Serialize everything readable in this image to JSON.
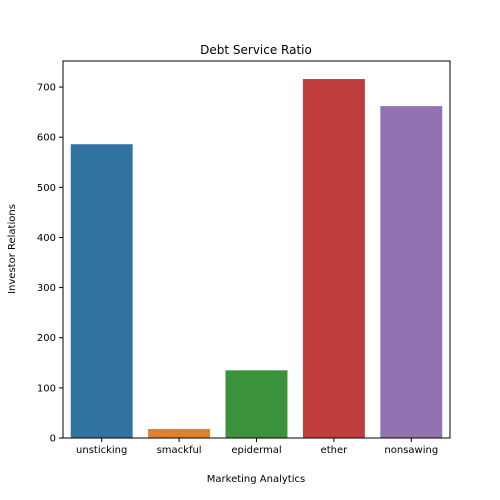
{
  "chart_data": {
    "type": "bar",
    "title": "Debt Service Ratio",
    "xlabel": "Marketing Analytics",
    "ylabel": "Investor Relations",
    "categories": [
      "unsticking",
      "smackful",
      "epidermal",
      "ether",
      "nonsawing"
    ],
    "values": [
      586,
      18,
      135,
      716,
      662
    ],
    "colors": [
      "#3274a1",
      "#e1812c",
      "#3a923a",
      "#c03d3e",
      "#9372b2"
    ],
    "ylim": [
      0,
      752
    ],
    "yticks": [
      0,
      100,
      200,
      300,
      400,
      500,
      600,
      700
    ],
    "grid": false
  }
}
